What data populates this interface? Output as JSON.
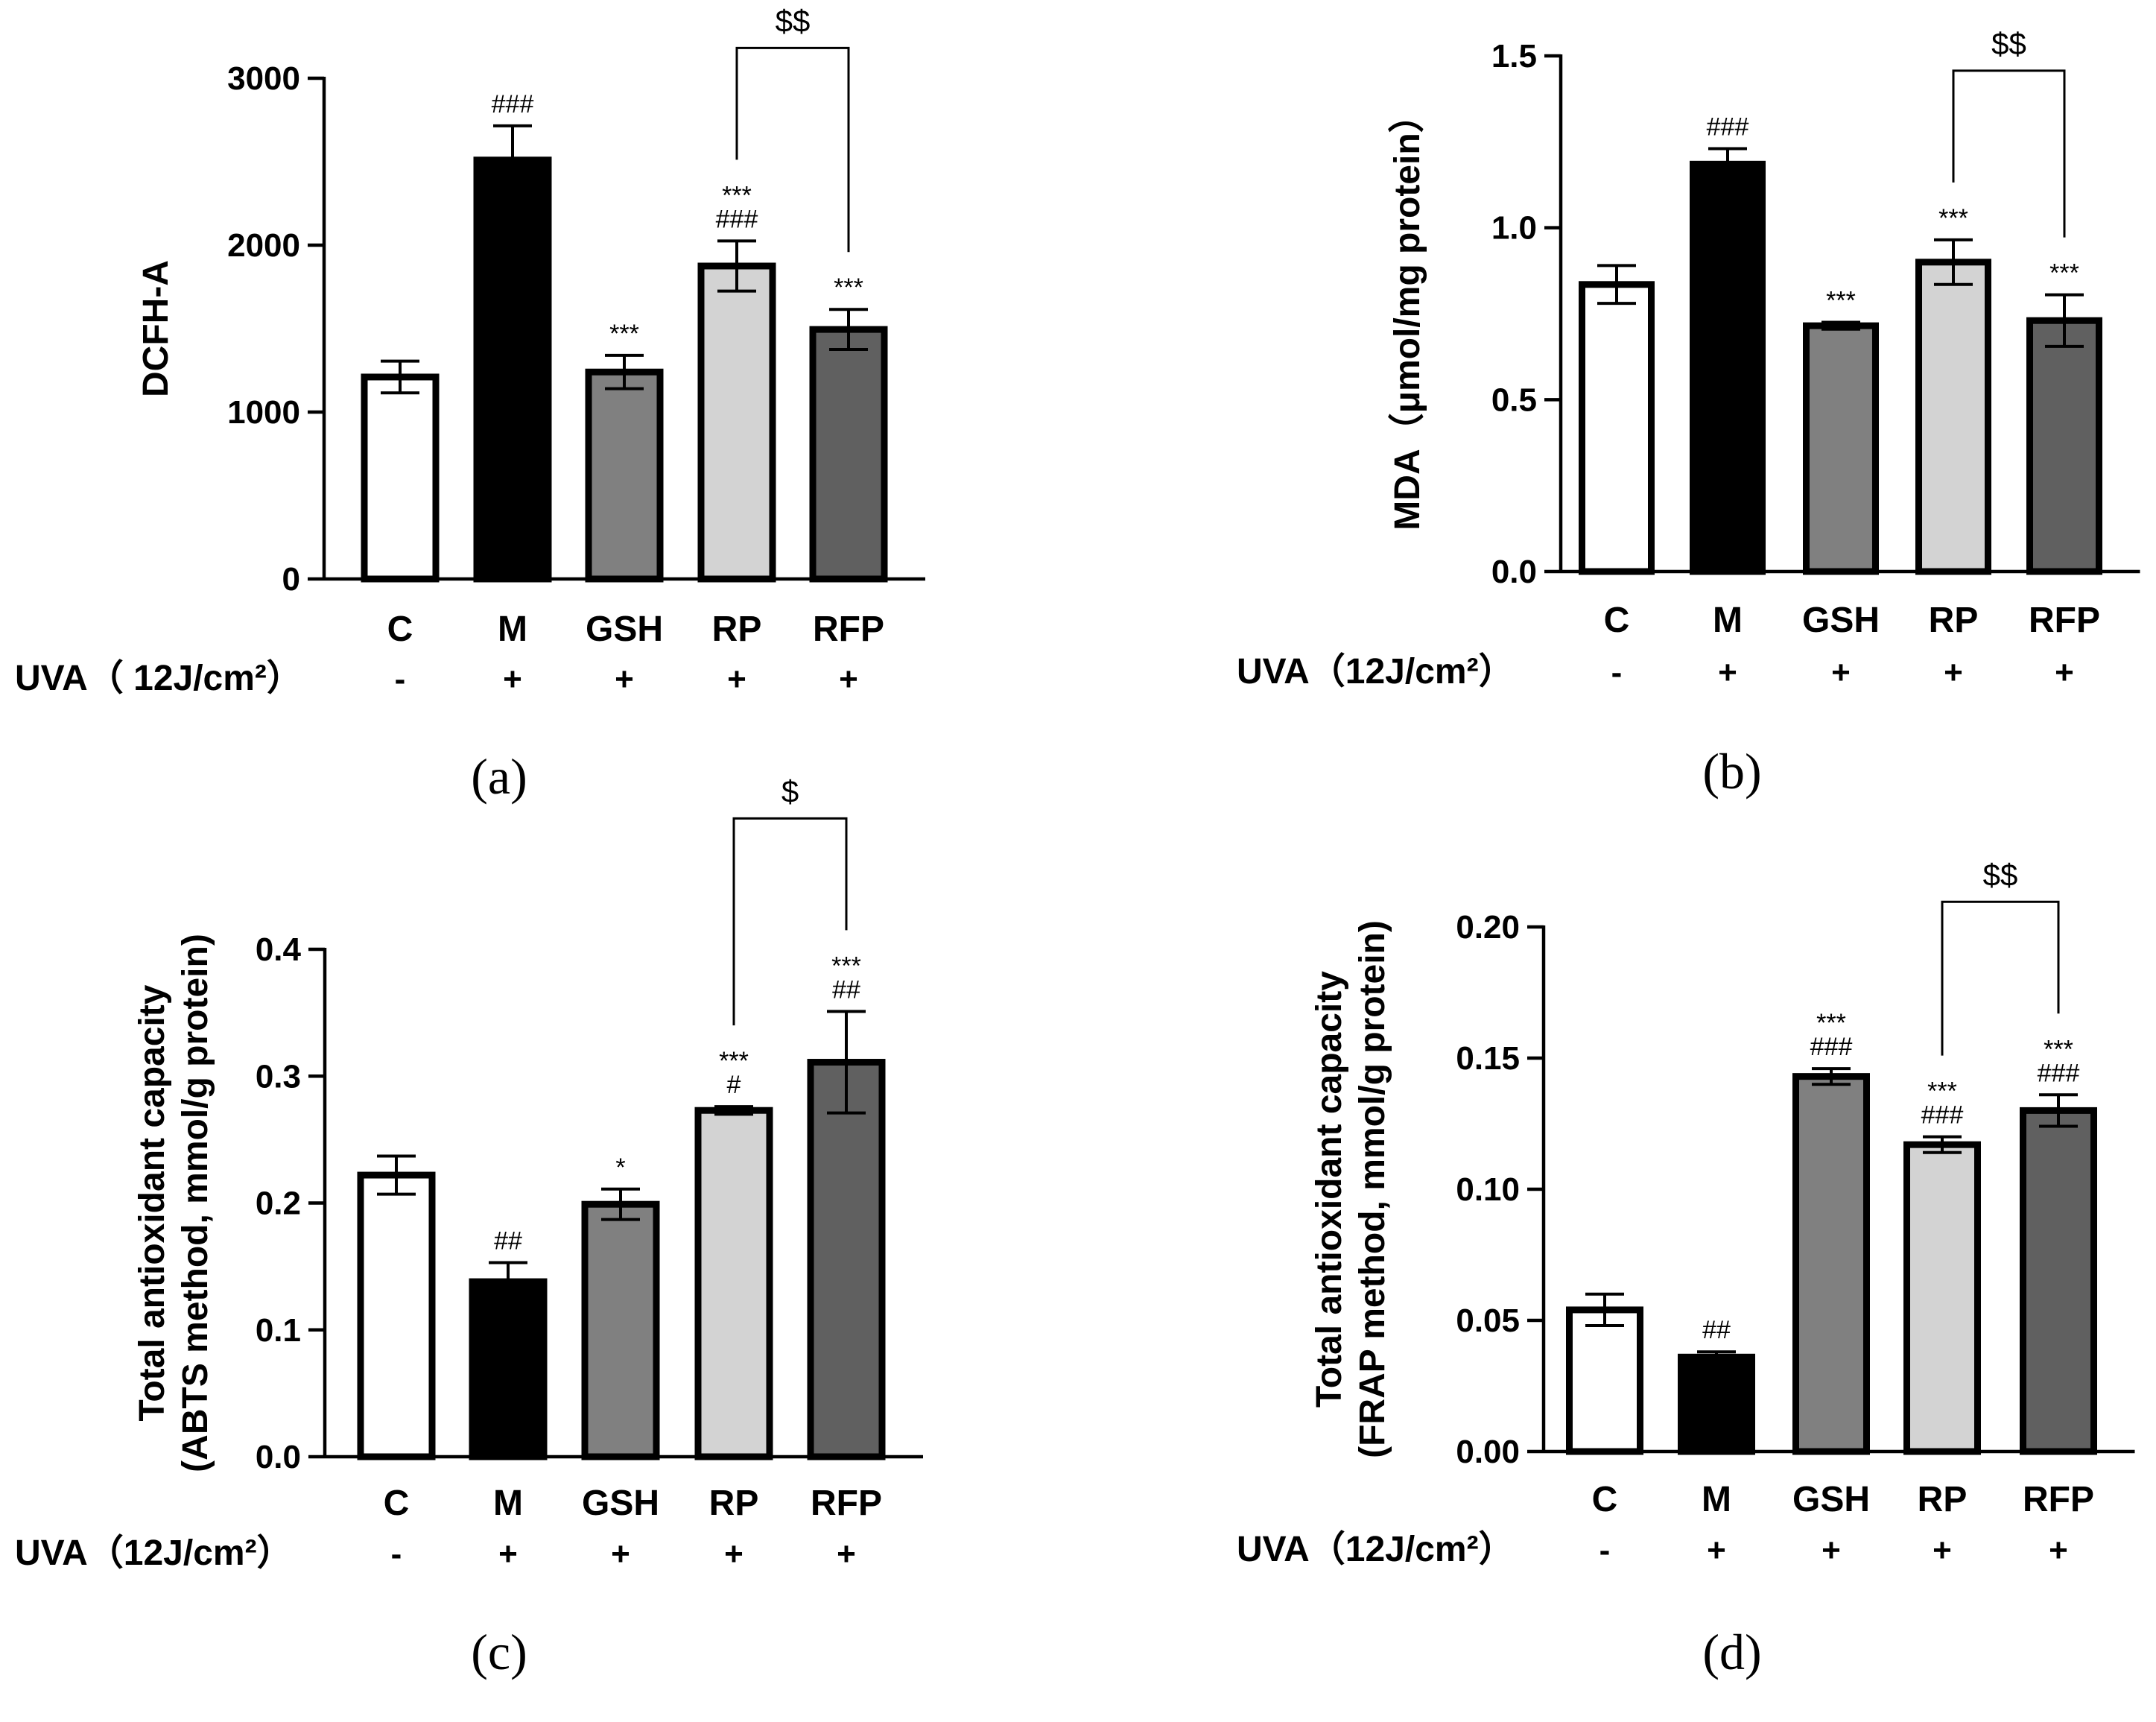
{
  "categories": [
    "C",
    "M",
    "GSH",
    "RP",
    "RFP"
  ],
  "uva_signs": [
    "-",
    "+",
    "+",
    "+",
    "+"
  ],
  "bar_colors": [
    "#ffffff",
    "#000000",
    "#808080",
    "#d3d3d3",
    "#606060"
  ],
  "chart_data": [
    {
      "type": "bar",
      "panel_label": "(a)",
      "ylabel": "DCFH-A",
      "uva_label": "UVA（ 12J/cm²）",
      "ylim": [
        0,
        3000
      ],
      "yticks": [
        0,
        1000,
        2000,
        3000
      ],
      "tick_labels": [
        "0",
        "1000",
        "2000",
        "3000"
      ],
      "categories": [
        "C",
        "M",
        "GSH",
        "RP",
        "RFP"
      ],
      "values": [
        1210,
        2510,
        1240,
        1875,
        1495
      ],
      "errors": [
        95,
        205,
        100,
        150,
        120
      ],
      "annotations": [
        [],
        [
          "###"
        ],
        [
          "***"
        ],
        [
          "***",
          "###"
        ],
        [
          "***"
        ]
      ],
      "comparison": {
        "from": 3,
        "to": 4,
        "label": "$$"
      }
    },
    {
      "type": "bar",
      "panel_label": "(b)",
      "ylabel": "MDA（μmol/mg protein）",
      "uva_label": "UVA（12J/cm²）",
      "ylim": [
        0,
        1.5
      ],
      "yticks": [
        0,
        0.5,
        1.0,
        1.5
      ],
      "tick_labels": [
        "0.0",
        "0.5",
        "1.0",
        "1.5"
      ],
      "categories": [
        "C",
        "M",
        "GSH",
        "RP",
        "RFP"
      ],
      "values": [
        0.835,
        1.185,
        0.715,
        0.9,
        0.73
      ],
      "errors": [
        0.055,
        0.045,
        0.01,
        0.065,
        0.075
      ],
      "annotations": [
        [],
        [
          "###"
        ],
        [
          "***"
        ],
        [
          "***"
        ],
        [
          "***"
        ]
      ],
      "comparison": {
        "from": 3,
        "to": 4,
        "label": "$$"
      }
    },
    {
      "type": "bar",
      "panel_label": "(c)",
      "ylabel": [
        "Total antioxidant capacity",
        "(ABTS method, mmol/g protein)"
      ],
      "uva_label": "UVA（12J/cm²）",
      "ylim": [
        0,
        0.4
      ],
      "yticks": [
        0,
        0.1,
        0.2,
        0.3,
        0.4
      ],
      "tick_labels": [
        "0.0",
        "0.1",
        "0.2",
        "0.3",
        "0.4"
      ],
      "categories": [
        "C",
        "M",
        "GSH",
        "RP",
        "RFP"
      ],
      "values": [
        0.222,
        0.138,
        0.199,
        0.273,
        0.311
      ],
      "errors": [
        0.015,
        0.015,
        0.012,
        0.003,
        0.04
      ],
      "annotations": [
        [],
        [
          "##"
        ],
        [
          "*"
        ],
        [
          "***",
          "#"
        ],
        [
          "***",
          "##"
        ]
      ],
      "comparison": {
        "from": 3,
        "to": 4,
        "label": "$"
      }
    },
    {
      "type": "bar",
      "panel_label": "(d)",
      "ylabel": [
        "Total antioxidant capacity",
        "(FRAP method, mmol/g protein)"
      ],
      "uva_label": "UVA（12J/cm²）",
      "ylim": [
        0,
        0.2
      ],
      "yticks": [
        0,
        0.05,
        0.1,
        0.15,
        0.2
      ],
      "tick_labels": [
        "0.00",
        "0.05",
        "0.10",
        "0.15",
        "0.20"
      ],
      "categories": [
        "C",
        "M",
        "GSH",
        "RP",
        "RFP"
      ],
      "values": [
        0.054,
        0.036,
        0.143,
        0.117,
        0.13
      ],
      "errors": [
        0.006,
        0.002,
        0.003,
        0.003,
        0.006
      ],
      "annotations": [
        [],
        [
          "##"
        ],
        [
          "***",
          "###"
        ],
        [
          "***",
          "###"
        ],
        [
          "***",
          "###"
        ]
      ],
      "comparison": {
        "from": 3,
        "to": 4,
        "label": "$$"
      }
    }
  ]
}
